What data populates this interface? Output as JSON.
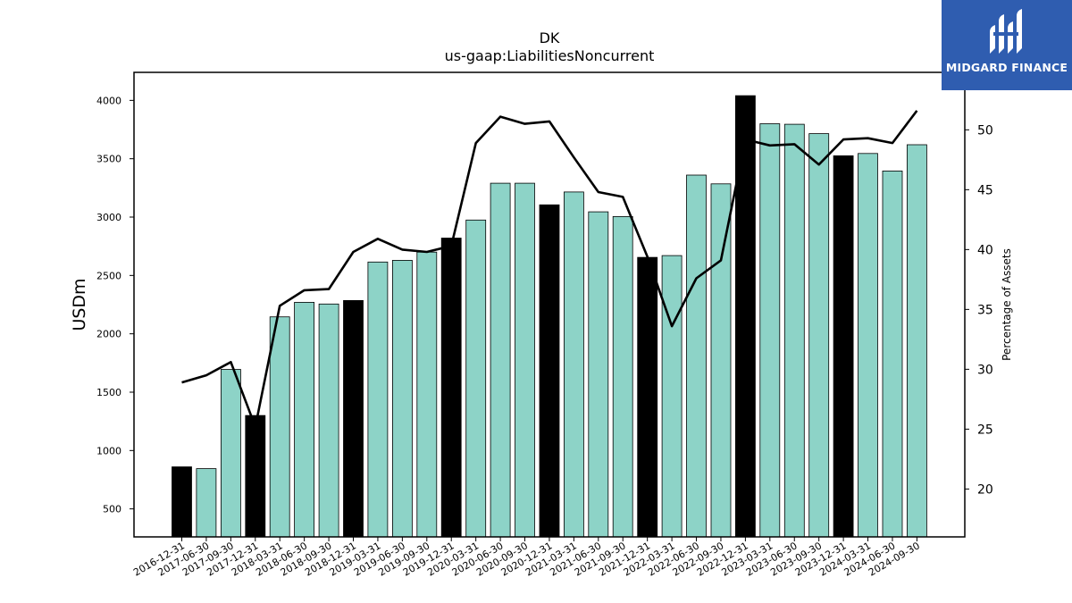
{
  "brand": {
    "name": "MIDGARD FINANCE",
    "bg_color": "#2f5db0"
  },
  "chart_data": {
    "type": "bar",
    "title": "DK",
    "subtitle": "us-gaap:LiabilitiesNoncurrent",
    "ylabel": "USDm",
    "y2label": "Percentage of Assets",
    "ylim": [
      260,
      4240
    ],
    "y2lim": [
      16.0,
      54.8
    ],
    "yticks": [
      500,
      1000,
      1500,
      2000,
      2500,
      3000,
      3500,
      4000
    ],
    "y2ticks": [
      20,
      25,
      30,
      35,
      40,
      45,
      50
    ],
    "categories": [
      "2016-12-31",
      "2017-06-30",
      "2017-09-30",
      "2017-12-31",
      "2018-03-31",
      "2018-06-30",
      "2018-09-30",
      "2018-12-31",
      "2019-03-31",
      "2019-06-30",
      "2019-09-30",
      "2019-12-31",
      "2020-03-31",
      "2020-06-30",
      "2020-09-30",
      "2020-12-31",
      "2021-03-31",
      "2021-06-30",
      "2021-09-30",
      "2021-12-31",
      "2022-03-31",
      "2022-06-30",
      "2022-09-30",
      "2022-12-31",
      "2023-03-31",
      "2023-06-30",
      "2023-09-30",
      "2023-12-31",
      "2024-03-31",
      "2024-06-30",
      "2024-09-30"
    ],
    "series": [
      {
        "type": "bar",
        "values": [
          860,
          845,
          1695,
          1300,
          2145,
          2270,
          2255,
          2285,
          2615,
          2630,
          2700,
          2820,
          2975,
          3290,
          3290,
          3105,
          3215,
          3045,
          3005,
          2655,
          2670,
          3360,
          3285,
          4040,
          3800,
          3795,
          3715,
          3525,
          3545,
          3395,
          3620
        ],
        "annual_flags": [
          1,
          0,
          0,
          1,
          0,
          0,
          0,
          1,
          0,
          0,
          0,
          1,
          0,
          0,
          0,
          1,
          0,
          0,
          0,
          1,
          0,
          0,
          0,
          1,
          0,
          0,
          0,
          1,
          0,
          0,
          0
        ]
      },
      {
        "type": "line",
        "axis": "right",
        "values": [
          28.9,
          29.5,
          30.6,
          25.2,
          35.3,
          36.6,
          36.7,
          39.8,
          40.9,
          40.0,
          39.8,
          40.3,
          48.9,
          51.1,
          50.5,
          50.7,
          47.7,
          44.8,
          44.4,
          39.4,
          33.6,
          37.6,
          39.1,
          49.2,
          48.7,
          48.8,
          47.1,
          49.2,
          49.3,
          48.9,
          51.6
        ]
      }
    ],
    "colors": {
      "bar": "#8dd3c7",
      "bar_annual": "#000000",
      "bar_edge": "#000000",
      "line": "#000000"
    },
    "grid": false,
    "legend": "none"
  }
}
